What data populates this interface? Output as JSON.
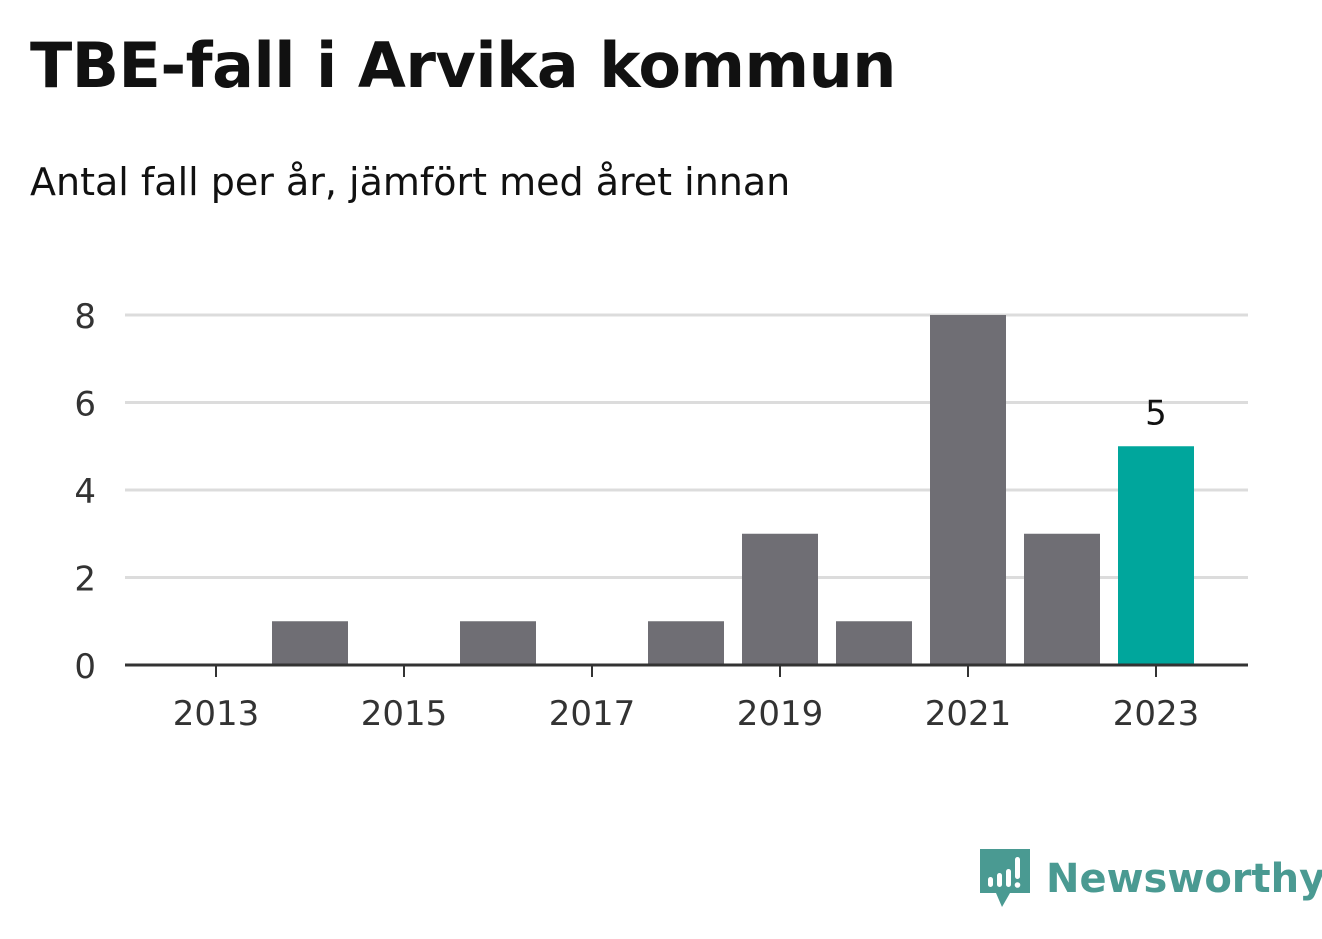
{
  "header": {
    "title": "TBE-fall i Arvika kommun",
    "subtitle": "Antal fall per år, jämfört med året innan"
  },
  "brand": {
    "name": "Newsworthy",
    "color": "#4a9a92",
    "icon": "newsworthy-logo-icon"
  },
  "colors": {
    "bar_default": "#6f6e74",
    "bar_highlight": "#00a69c",
    "grid": "#dcdcdc",
    "axis": "#333333",
    "text": "#333333"
  },
  "chart_data": {
    "type": "bar",
    "categories": [
      "2013",
      "2014",
      "2015",
      "2016",
      "2017",
      "2018",
      "2019",
      "2020",
      "2021",
      "2022",
      "2023"
    ],
    "values": [
      0,
      1,
      0,
      1,
      0,
      1,
      3,
      1,
      8,
      3,
      5
    ],
    "highlight_index": 10,
    "x_tick_labels": [
      "2013",
      "2015",
      "2017",
      "2019",
      "2021",
      "2023"
    ],
    "y_ticks": [
      0,
      2,
      4,
      6,
      8
    ],
    "ylim": [
      0,
      8
    ],
    "grid": true,
    "data_labels": [
      {
        "category": "2023",
        "value": "5"
      }
    ]
  }
}
